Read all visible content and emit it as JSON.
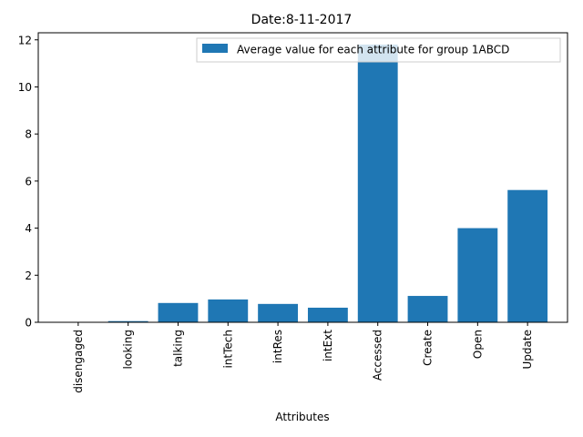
{
  "chart_data": {
    "type": "bar",
    "title": "Date:8-11-2017",
    "xlabel": "Attributes",
    "ylabel": "",
    "categories": [
      "disengaged",
      "looking",
      "talking",
      "intTech",
      "intRes",
      "intExt",
      "Accessed",
      "Create",
      "Open",
      "Update"
    ],
    "series": [
      {
        "name": "Average value for each attribute for group 1ABCD",
        "values": [
          0.0,
          0.05,
          0.82,
          0.97,
          0.78,
          0.62,
          11.8,
          1.12,
          4.0,
          5.62
        ],
        "color": "#1f77b4"
      }
    ],
    "ylim": [
      0,
      12.3
    ],
    "yticks": [
      0,
      2,
      4,
      6,
      8,
      10,
      12
    ],
    "grid": false,
    "legend_position": "top-right"
  }
}
